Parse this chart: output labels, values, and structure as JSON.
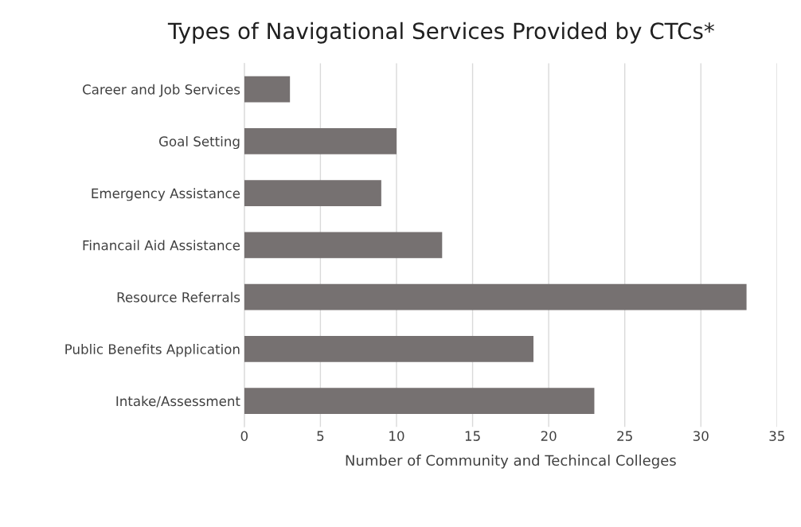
{
  "chart_data": {
    "type": "bar",
    "orientation": "horizontal",
    "title": "Types of Navigational Services Provided by CTCs*",
    "xlabel": "Number of Community and Techincal Colleges",
    "categories": [
      "Career and Job Services",
      "Goal Setting",
      "Emergency Assistance",
      "Financail Aid Assistance",
      "Resource Referrals",
      "Public Benefits Application",
      "Intake/Assessment"
    ],
    "values": [
      3,
      10,
      9,
      13,
      33,
      19,
      23
    ],
    "color": "#767171",
    "xlim": [
      0,
      35
    ],
    "xticks": [
      0,
      5,
      10,
      15,
      20,
      25,
      30,
      35
    ],
    "grid": "x"
  }
}
